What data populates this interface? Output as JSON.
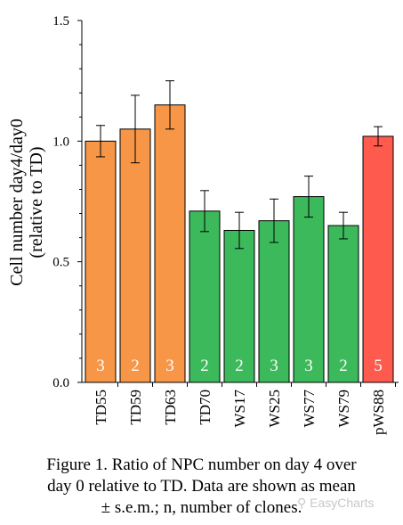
{
  "chart_data": {
    "type": "bar",
    "categories": [
      "TD55",
      "TD59",
      "TD63",
      "TD70",
      "WS17",
      "WS25",
      "WS77",
      "WS79",
      "pWS88"
    ],
    "values": [
      1.0,
      1.05,
      1.15,
      0.71,
      0.63,
      0.67,
      0.77,
      0.65,
      1.02
    ],
    "errors": [
      0.065,
      0.14,
      0.1,
      0.085,
      0.075,
      0.09,
      0.085,
      0.055,
      0.04
    ],
    "n_labels": [
      "3",
      "2",
      "3",
      "2",
      "2",
      "3",
      "3",
      "2",
      "5"
    ],
    "bar_colors": [
      "#f79646",
      "#f79646",
      "#f79646",
      "#3cb95a",
      "#3cb95a",
      "#3cb95a",
      "#3cb95a",
      "#3cb95a",
      "#ff5a4e"
    ],
    "ylabel_line1": "Cell number day4/day0",
    "ylabel_line2": "(relative to TD)",
    "ylim": [
      0.0,
      1.5
    ],
    "yticks": [
      "0.0",
      "0.5",
      "1.0",
      "1.5"
    ],
    "grid": false
  },
  "caption": {
    "line1": "Figure 1. Ratio of NPC number on day 4 over",
    "line2": "day 0 relative to TD. Data are shown as mean",
    "line3": "± s.e.m.; n, number of clones."
  },
  "watermark": "EasyCharts"
}
